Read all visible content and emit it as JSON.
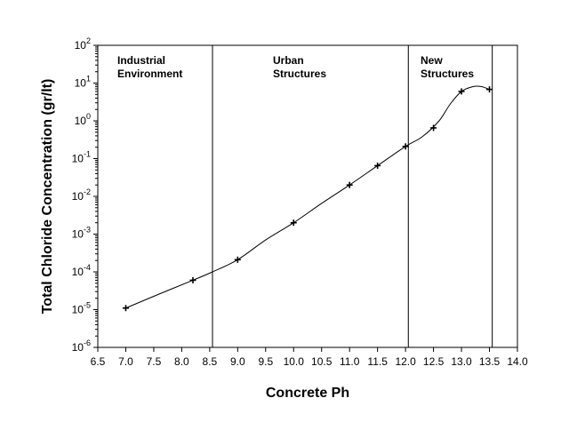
{
  "chart_data": {
    "type": "line",
    "title": "",
    "xlabel": "Concrete Ph",
    "ylabel": "Total Chloride Concentration (gr/lt)",
    "y_scale": "log",
    "xlim": [
      6.5,
      14.0
    ],
    "ylim": [
      1e-06,
      100
    ],
    "x_ticks": [
      6.5,
      7.0,
      7.5,
      8.0,
      8.5,
      9.0,
      9.5,
      10.0,
      10.5,
      11.0,
      11.5,
      12.0,
      12.5,
      13.0,
      13.5,
      14.0
    ],
    "x_tick_labels": [
      "6.5",
      "7.0",
      "7.5",
      "8.0",
      "8.5",
      "9.0",
      "9.5",
      "10.0",
      "10.5",
      "11.0",
      "11.5",
      "12.0",
      "12.5",
      "13.0",
      "13.5",
      "14.0"
    ],
    "y_ticks": [
      {
        "base": "10",
        "exp": "-6"
      },
      {
        "base": "10",
        "exp": "-5"
      },
      {
        "base": "10",
        "exp": "-4"
      },
      {
        "base": "10",
        "exp": "-3"
      },
      {
        "base": "10",
        "exp": "-2"
      },
      {
        "base": "10",
        "exp": "-1"
      },
      {
        "base": "10",
        "exp": "0"
      },
      {
        "base": "10",
        "exp": "1"
      },
      {
        "base": "10",
        "exp": "2"
      }
    ],
    "grid": false,
    "legend": "none",
    "line_color": "#000000",
    "regions": [
      {
        "lines": [
          "Industrial",
          "Environment"
        ]
      },
      {
        "lines": [
          "Urban",
          "Structures"
        ]
      },
      {
        "lines": [
          "New",
          "Structures"
        ]
      }
    ],
    "region_boundaries_x": [
      8.55,
      12.05,
      13.55
    ],
    "points": [
      {
        "x": 7.0,
        "y": 1.1e-05
      },
      {
        "x": 8.2,
        "y": 6e-05
      },
      {
        "x": 9.0,
        "y": 0.00021
      },
      {
        "x": 10.0,
        "y": 0.002
      },
      {
        "x": 11.0,
        "y": 0.02
      },
      {
        "x": 11.5,
        "y": 0.065
      },
      {
        "x": 12.0,
        "y": 0.21
      },
      {
        "x": 12.5,
        "y": 0.65
      },
      {
        "x": 13.0,
        "y": 6.0
      },
      {
        "x": 13.5,
        "y": 6.8
      }
    ],
    "curve": [
      {
        "x": 7.0,
        "y": 1.1e-05
      },
      {
        "x": 7.6,
        "y": 2.6e-05
      },
      {
        "x": 8.2,
        "y": 6e-05
      },
      {
        "x": 8.55,
        "y": 0.0001
      },
      {
        "x": 9.0,
        "y": 0.00021
      },
      {
        "x": 9.5,
        "y": 0.0007
      },
      {
        "x": 10.0,
        "y": 0.002
      },
      {
        "x": 10.5,
        "y": 0.0065
      },
      {
        "x": 11.0,
        "y": 0.02
      },
      {
        "x": 11.5,
        "y": 0.065
      },
      {
        "x": 12.0,
        "y": 0.21
      },
      {
        "x": 12.3,
        "y": 0.38
      },
      {
        "x": 12.6,
        "y": 1.0
      },
      {
        "x": 12.8,
        "y": 2.8
      },
      {
        "x": 13.0,
        "y": 6.0
      },
      {
        "x": 13.2,
        "y": 8.0
      },
      {
        "x": 13.35,
        "y": 8.1
      },
      {
        "x": 13.5,
        "y": 6.8
      }
    ]
  }
}
